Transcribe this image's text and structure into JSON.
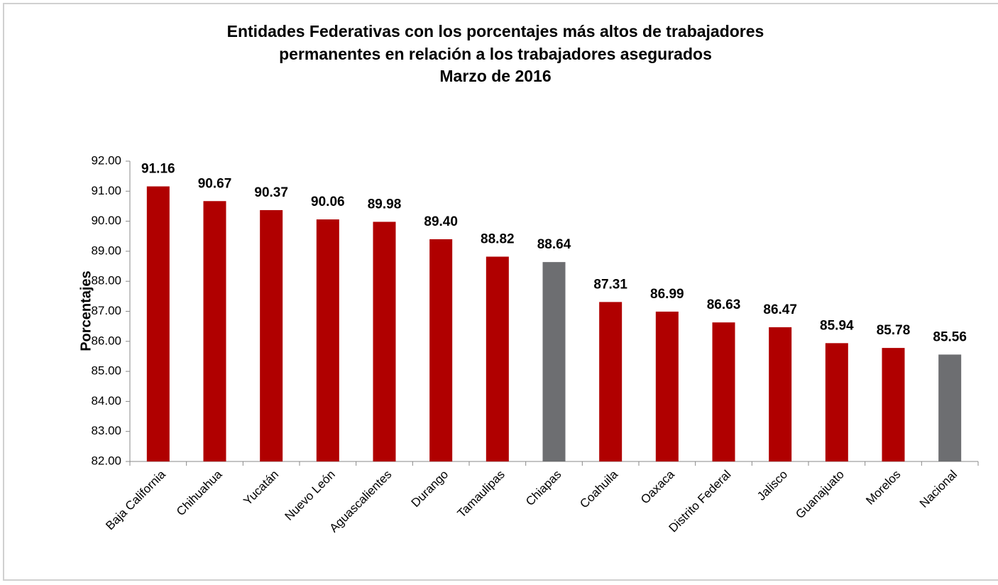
{
  "chart_data": {
    "type": "bar",
    "title": [
      "Entidades Federativas con los porcentajes más altos de trabajadores",
      "permanentes  en relación a los trabajadores asegurados",
      "Marzo de 2016"
    ],
    "y_label": "Porcentajes",
    "categories": [
      "Baja California",
      "Chihuahua",
      "Yucatán",
      "Nuevo León",
      "Aguascalientes",
      "Durango",
      "Tamaulipas",
      "Chiapas",
      "Coahuila",
      "Oaxaca",
      "Distrito Federal",
      "Jalisco",
      "Guanajuato",
      "Morelos",
      "Nacional"
    ],
    "values": [
      91.16,
      90.67,
      90.37,
      90.06,
      89.98,
      89.4,
      88.82,
      88.64,
      87.31,
      86.99,
      86.63,
      86.47,
      85.94,
      85.78,
      85.56
    ],
    "value_labels": [
      "91.16",
      "90.67",
      "90.37",
      "90.06",
      "89.98",
      "89.40",
      "88.82",
      "88.64",
      "87.31",
      "86.99",
      "86.63",
      "86.47",
      "85.94",
      "85.78",
      "85.56"
    ],
    "colors": [
      "#b00000",
      "#b00000",
      "#b00000",
      "#b00000",
      "#b00000",
      "#b00000",
      "#b00000",
      "#6d6e71",
      "#b00000",
      "#b00000",
      "#b00000",
      "#b00000",
      "#b00000",
      "#b00000",
      "#6d6e71"
    ],
    "ylim": [
      82,
      92
    ],
    "yticks": [
      {
        "value": 82,
        "label": "82.00"
      },
      {
        "value": 83,
        "label": "83.00"
      },
      {
        "value": 84,
        "label": "84.00"
      },
      {
        "value": 85,
        "label": "85.00"
      },
      {
        "value": 86,
        "label": "86.00"
      },
      {
        "value": 87,
        "label": "87.00"
      },
      {
        "value": 88,
        "label": "88.00"
      },
      {
        "value": 89,
        "label": "89.00"
      },
      {
        "value": 90,
        "label": "90.00"
      },
      {
        "value": 91,
        "label": "91.00"
      },
      {
        "value": 92,
        "label": "92.00"
      }
    ],
    "grid": false
  }
}
